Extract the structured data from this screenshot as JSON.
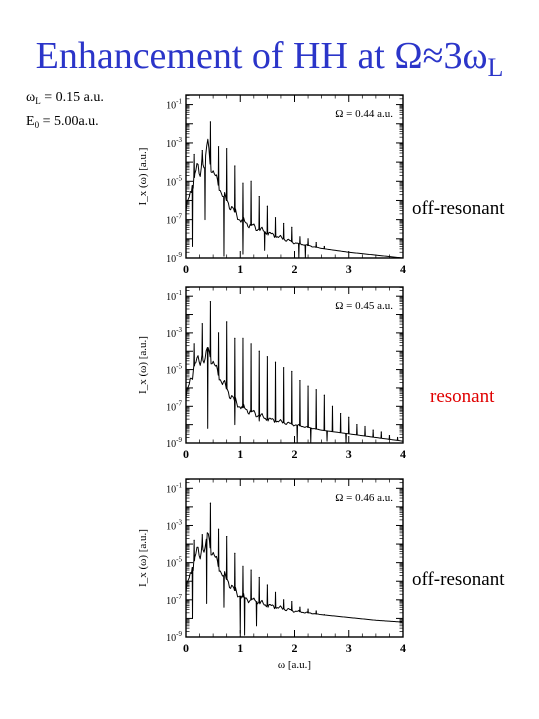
{
  "title": {
    "main": "Enhancement of HH at Ω≈3ω",
    "sub": "L"
  },
  "params": [
    {
      "sym": "ω",
      "sub": "L",
      "text": " = 0.15 a.u."
    },
    {
      "sym": "E",
      "sub": "0",
      "text": " = 5.00a.u."
    }
  ],
  "side_labels": [
    "off-resonant",
    "resonant",
    "off-resonant"
  ],
  "chart_data": [
    {
      "type": "line",
      "annotation": "Ω = 0.44 a.u.",
      "ylabel": "I_x (ω) [a.u.]",
      "xlim": [
        0,
        4
      ],
      "ylim": [
        -9,
        -0.5
      ],
      "yscale": "log",
      "xticks": [
        "0",
        "1",
        "2",
        "3",
        "4"
      ],
      "yticks": [
        {
          "exp": -9
        },
        {
          "exp": -7
        },
        {
          "exp": -5
        },
        {
          "exp": -3
        },
        {
          "exp": -1
        }
      ],
      "x": [
        0.0,
        0.05,
        0.1,
        0.15,
        0.2,
        0.25,
        0.3,
        0.35,
        0.4,
        0.45,
        0.5,
        0.6,
        0.7,
        0.8,
        0.9,
        1.0,
        1.2,
        1.5,
        2.0,
        2.5,
        3.0,
        3.5,
        4.0
      ],
      "log10_y": [
        -6.6,
        -6.0,
        -5.5,
        -4.8,
        -4.2,
        -4.8,
        -3.8,
        -4.3,
        -2.8,
        -4.1,
        -4.5,
        -5.2,
        -5.8,
        -6.2,
        -6.6,
        -7.0,
        -7.3,
        -7.7,
        -8.2,
        -8.5,
        -8.7,
        -8.85,
        -9.0
      ],
      "peaks": [
        [
          0.15,
          -3.6
        ],
        [
          0.3,
          -3.4
        ],
        [
          0.45,
          -1.9
        ],
        [
          0.6,
          -3.2
        ],
        [
          0.75,
          -3.3
        ],
        [
          0.9,
          -4.2
        ],
        [
          1.05,
          -5.1
        ],
        [
          1.2,
          -5.0
        ],
        [
          1.35,
          -5.8
        ],
        [
          1.5,
          -6.3
        ],
        [
          1.65,
          -6.9
        ],
        [
          1.8,
          -7.2
        ],
        [
          1.95,
          -7.4
        ],
        [
          2.1,
          -7.9
        ],
        [
          2.25,
          -8.0
        ],
        [
          2.4,
          -8.2
        ],
        [
          2.55,
          -8.4
        ]
      ],
      "dips": [
        [
          0.12,
          -8.4
        ],
        [
          0.35,
          -7.0
        ],
        [
          0.7,
          -8.9
        ],
        [
          1.05,
          -8.8
        ],
        [
          1.45,
          -8.6
        ],
        [
          2.08,
          -9.0
        ],
        [
          2.2,
          -9.0
        ]
      ]
    },
    {
      "type": "line",
      "annotation": "Ω = 0.45 a.u.",
      "ylabel": "I_x (ω) [a.u.]",
      "xlim": [
        0,
        4
      ],
      "ylim": [
        -9,
        -0.5
      ],
      "yscale": "log",
      "xticks": [
        "0",
        "1",
        "2",
        "3",
        "4"
      ],
      "yticks": [
        {
          "exp": -9
        },
        {
          "exp": -7
        },
        {
          "exp": -5
        },
        {
          "exp": -3
        },
        {
          "exp": -1
        }
      ],
      "x": [
        0.0,
        0.05,
        0.1,
        0.15,
        0.2,
        0.25,
        0.3,
        0.35,
        0.4,
        0.45,
        0.5,
        0.6,
        0.7,
        0.8,
        0.9,
        1.0,
        1.2,
        1.5,
        2.0,
        2.5,
        3.0,
        3.5,
        4.0
      ],
      "log10_y": [
        -6.6,
        -6.0,
        -5.4,
        -4.8,
        -4.5,
        -4.7,
        -4.2,
        -4.6,
        -3.8,
        -4.3,
        -4.6,
        -5.3,
        -5.8,
        -6.3,
        -6.7,
        -7.0,
        -7.3,
        -7.7,
        -8.0,
        -8.3,
        -8.5,
        -8.7,
        -8.9
      ],
      "peaks": [
        [
          0.15,
          -3.6
        ],
        [
          0.3,
          -2.5
        ],
        [
          0.45,
          -1.3
        ],
        [
          0.6,
          -3.0
        ],
        [
          0.75,
          -2.4
        ],
        [
          0.9,
          -3.3
        ],
        [
          1.05,
          -3.3
        ],
        [
          1.2,
          -3.6
        ],
        [
          1.35,
          -4.0
        ],
        [
          1.5,
          -4.3
        ],
        [
          1.65,
          -4.6
        ],
        [
          1.8,
          -4.9
        ],
        [
          1.95,
          -5.1
        ],
        [
          2.1,
          -5.6
        ],
        [
          2.25,
          -5.9
        ],
        [
          2.4,
          -6.1
        ],
        [
          2.55,
          -6.4
        ],
        [
          2.7,
          -7.0
        ],
        [
          2.85,
          -7.4
        ],
        [
          3.0,
          -7.6
        ],
        [
          3.15,
          -8.0
        ],
        [
          3.3,
          -8.1
        ],
        [
          3.45,
          -8.3
        ],
        [
          3.6,
          -8.4
        ],
        [
          3.75,
          -8.6
        ],
        [
          3.9,
          -8.7
        ]
      ],
      "dips": [
        [
          0.4,
          -8.2
        ],
        [
          0.9,
          -8.0
        ],
        [
          1.35,
          -7.8
        ],
        [
          2.05,
          -9.0
        ],
        [
          2.3,
          -9.0
        ],
        [
          2.6,
          -8.9
        ],
        [
          2.95,
          -9.0
        ]
      ]
    },
    {
      "type": "line",
      "annotation": "Ω = 0.46 a.u.",
      "ylabel": "I_x (ω) [a.u.]",
      "xlabel": "ω [a.u.]",
      "xlim": [
        0,
        4
      ],
      "ylim": [
        -9,
        -0.5
      ],
      "yscale": "log",
      "xticks": [
        "0",
        "1",
        "2",
        "3",
        "4"
      ],
      "yticks": [
        {
          "exp": -9
        },
        {
          "exp": -7
        },
        {
          "exp": -5
        },
        {
          "exp": -3
        },
        {
          "exp": -1
        }
      ],
      "x": [
        0.0,
        0.05,
        0.1,
        0.15,
        0.2,
        0.25,
        0.3,
        0.35,
        0.4,
        0.45,
        0.5,
        0.6,
        0.7,
        0.8,
        0.9,
        1.0,
        1.2,
        1.5,
        2.0,
        2.5,
        3.0,
        3.5,
        4.0
      ],
      "log10_y": [
        -6.6,
        -6.0,
        -5.5,
        -4.9,
        -4.3,
        -4.8,
        -4.0,
        -4.4,
        -3.3,
        -4.2,
        -4.5,
        -5.2,
        -5.7,
        -6.1,
        -6.5,
        -6.8,
        -7.0,
        -7.3,
        -7.6,
        -7.8,
        -7.95,
        -8.1,
        -8.2
      ],
      "peaks": [
        [
          0.15,
          -3.8
        ],
        [
          0.3,
          -3.5
        ],
        [
          0.45,
          -1.8
        ],
        [
          0.6,
          -3.2
        ],
        [
          0.75,
          -3.6
        ],
        [
          0.9,
          -4.5
        ],
        [
          1.05,
          -5.2
        ],
        [
          1.2,
          -5.4
        ],
        [
          1.35,
          -5.8
        ],
        [
          1.5,
          -6.2
        ],
        [
          1.65,
          -6.6
        ],
        [
          1.8,
          -7.0
        ],
        [
          1.95,
          -7.1
        ],
        [
          2.1,
          -7.4
        ],
        [
          2.25,
          -7.5
        ],
        [
          2.4,
          -7.6
        ],
        [
          2.55,
          -7.8
        ]
      ],
      "dips": [
        [
          0.12,
          -8.0
        ],
        [
          0.38,
          -7.2
        ],
        [
          0.7,
          -7.4
        ],
        [
          1.0,
          -8.8
        ],
        [
          1.08,
          -8.9
        ],
        [
          1.3,
          -8.4
        ]
      ]
    }
  ]
}
